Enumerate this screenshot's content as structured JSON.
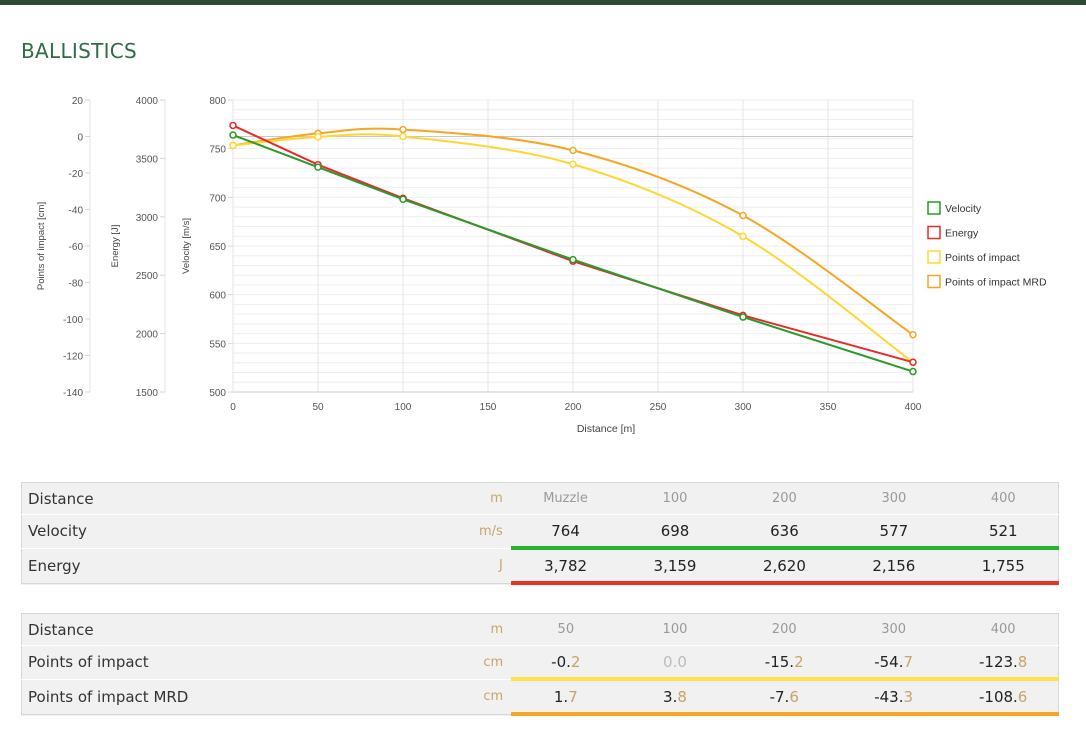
{
  "page": {
    "title": "BALLISTICS"
  },
  "chart_data": {
    "type": "line",
    "xlabel": "Distance [m]",
    "x_ticks": [
      "0",
      "50",
      "100",
      "150",
      "200",
      "250",
      "300",
      "350",
      "400"
    ],
    "xlim": [
      0,
      400
    ],
    "axes": [
      {
        "label": "Points of impact [cm]",
        "range": [
          -140,
          20
        ],
        "ticks": [
          "20",
          "0",
          "-20",
          "-40",
          "-60",
          "-80",
          "-100",
          "-120",
          "-140"
        ]
      },
      {
        "label": "Energy [J]",
        "range": [
          1500,
          4000
        ],
        "ticks": [
          "4000",
          "3500",
          "3000",
          "2500",
          "2000",
          "1500"
        ]
      },
      {
        "label": "Velocity [m/s]",
        "range": [
          500,
          800
        ],
        "ticks": [
          "800",
          "750",
          "700",
          "650",
          "600",
          "550",
          "500"
        ]
      }
    ],
    "grid": true,
    "legend_position": "right",
    "series": [
      {
        "name": "Velocity",
        "color": "#2a9a2a",
        "axis": 2,
        "x": [
          0,
          50,
          100,
          200,
          300,
          400
        ],
        "y": [
          764,
          731,
          698,
          636,
          577,
          521
        ]
      },
      {
        "name": "Energy",
        "color": "#e52b2b",
        "axis": 1,
        "x": [
          0,
          50,
          100,
          200,
          300,
          400
        ],
        "y": [
          3782,
          3446,
          3159,
          2620,
          2156,
          1755
        ]
      },
      {
        "name": "Points of impact",
        "color": "#ffd732",
        "axis": 0,
        "x": [
          0,
          50,
          100,
          200,
          300,
          400
        ],
        "y": [
          -4.9,
          -0.2,
          0.0,
          -15.2,
          -54.7,
          -123.8
        ]
      },
      {
        "name": "Points of impact MRD",
        "color": "#f5a623",
        "axis": 0,
        "x": [
          0,
          50,
          100,
          200,
          300,
          400
        ],
        "y": [
          -4.9,
          1.7,
          3.8,
          -7.6,
          -43.3,
          -108.6
        ]
      }
    ]
  },
  "table1": {
    "rows": [
      {
        "label": "Distance",
        "unit": "m",
        "values": [
          "Muzzle",
          "100",
          "200",
          "300",
          "400"
        ]
      },
      {
        "label": "Velocity",
        "unit": "m/s",
        "values": [
          "764",
          "698",
          "636",
          "577",
          "521"
        ]
      },
      {
        "label": "Energy",
        "unit": "J",
        "values": [
          "3,782",
          "3,159",
          "2,620",
          "2,156",
          "1,755"
        ]
      }
    ]
  },
  "table2": {
    "rows": [
      {
        "label": "Distance",
        "unit": "m",
        "values": [
          "50",
          "100",
          "200",
          "300",
          "400"
        ]
      },
      {
        "label": "Points of impact",
        "unit": "cm",
        "values_int": [
          "-0.",
          "0.",
          "-15.",
          "-54.",
          "-123."
        ],
        "values_frac": [
          "2",
          "0",
          "2",
          "7",
          "8"
        ]
      },
      {
        "label": "Points of impact MRD",
        "unit": "cm",
        "values_int": [
          "1.",
          "3.",
          "-7.",
          "-43.",
          "-108."
        ],
        "values_frac": [
          "7",
          "8",
          "6",
          "3",
          "6"
        ]
      }
    ]
  }
}
